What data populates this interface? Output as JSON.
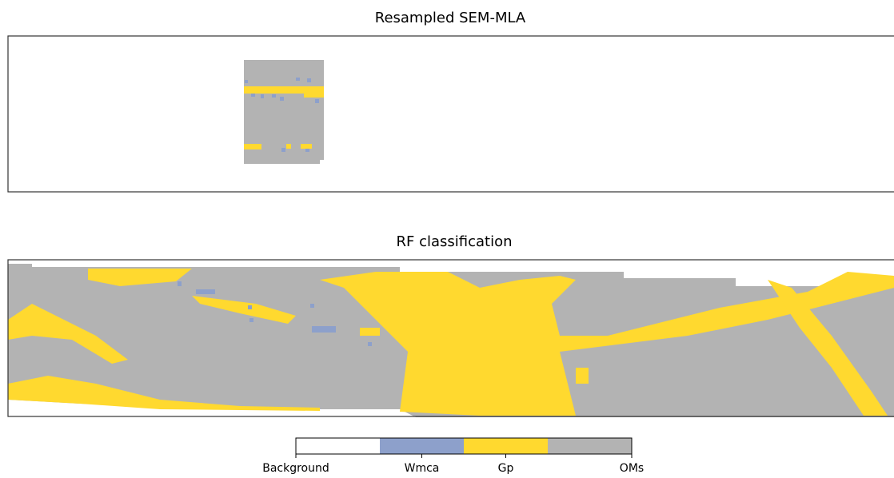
{
  "panels": [
    {
      "title": "Resampled SEM-MLA"
    },
    {
      "title": "RF classification"
    }
  ],
  "legend": {
    "classes": [
      {
        "name": "Background",
        "color": "#ffffff"
      },
      {
        "name": "Wmca",
        "color": "#8da0cb"
      },
      {
        "name": "Gp",
        "color": "#ffd92f"
      },
      {
        "name": "OMs",
        "color": "#b3b3b3"
      }
    ]
  }
}
